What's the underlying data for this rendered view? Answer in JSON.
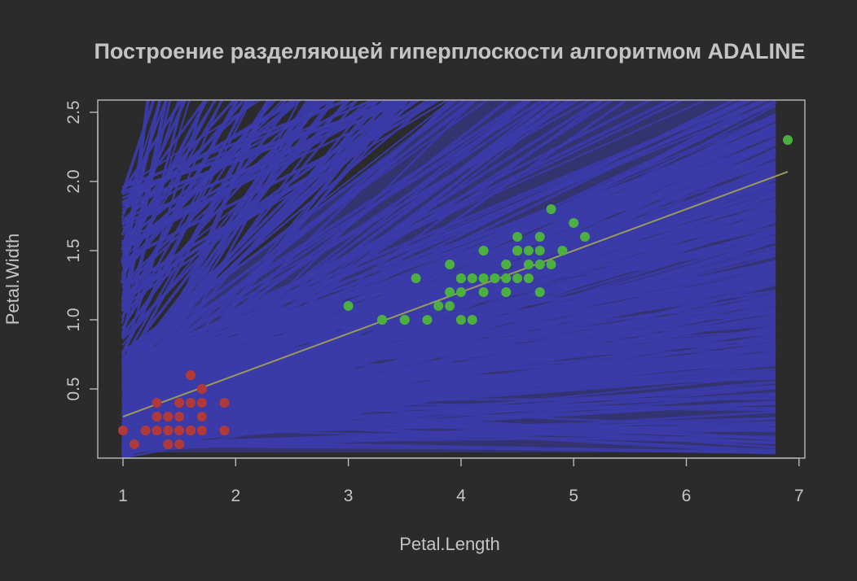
{
  "chart_data": {
    "type": "scatter",
    "title": "Построение разделяющей гиперплоскости алгоритмом ADALINE",
    "xlabel": "Petal.Length",
    "ylabel": "Petal.Width",
    "xlim": [
      1,
      6.9
    ],
    "ylim": [
      0.1,
      2.5
    ],
    "xticks": [
      "1",
      "2",
      "3",
      "4",
      "5",
      "6",
      "7"
    ],
    "yticks": [
      "0.5",
      "1.0",
      "1.5",
      "2.0",
      "2.5"
    ],
    "grid": false,
    "colors": {
      "background": "#2b2b2b",
      "foreground": "#c4c4c4",
      "hyperplane_iterations": "#3a3aa8",
      "final_hyperplane": "#9a9a5a",
      "class_1": "#b03a3a",
      "class_2": "#4cb040"
    },
    "series": [
      {
        "color": "#b03a3a",
        "points": [
          [
            1.4,
            0.2
          ],
          [
            1.4,
            0.2
          ],
          [
            1.3,
            0.2
          ],
          [
            1.5,
            0.2
          ],
          [
            1.4,
            0.2
          ],
          [
            1.7,
            0.4
          ],
          [
            1.4,
            0.3
          ],
          [
            1.5,
            0.2
          ],
          [
            1.4,
            0.2
          ],
          [
            1.5,
            0.1
          ],
          [
            1.5,
            0.2
          ],
          [
            1.6,
            0.2
          ],
          [
            1.4,
            0.1
          ],
          [
            1.1,
            0.1
          ],
          [
            1.2,
            0.2
          ],
          [
            1.5,
            0.4
          ],
          [
            1.3,
            0.4
          ],
          [
            1.4,
            0.3
          ],
          [
            1.7,
            0.3
          ],
          [
            1.5,
            0.3
          ],
          [
            1.7,
            0.2
          ],
          [
            1.5,
            0.4
          ],
          [
            1.0,
            0.2
          ],
          [
            1.7,
            0.5
          ],
          [
            1.9,
            0.2
          ],
          [
            1.6,
            0.2
          ],
          [
            1.6,
            0.4
          ],
          [
            1.5,
            0.2
          ],
          [
            1.4,
            0.2
          ],
          [
            1.6,
            0.2
          ],
          [
            1.6,
            0.2
          ],
          [
            1.5,
            0.4
          ],
          [
            1.5,
            0.1
          ],
          [
            1.4,
            0.2
          ],
          [
            1.5,
            0.2
          ],
          [
            1.2,
            0.2
          ],
          [
            1.3,
            0.2
          ],
          [
            1.4,
            0.1
          ],
          [
            1.3,
            0.2
          ],
          [
            1.5,
            0.2
          ],
          [
            1.3,
            0.3
          ],
          [
            1.3,
            0.3
          ],
          [
            1.3,
            0.2
          ],
          [
            1.6,
            0.6
          ],
          [
            1.9,
            0.4
          ],
          [
            1.4,
            0.3
          ],
          [
            1.6,
            0.2
          ],
          [
            1.4,
            0.2
          ],
          [
            1.5,
            0.2
          ],
          [
            1.4,
            0.2
          ]
        ]
      },
      {
        "color": "#4cb040",
        "points": [
          [
            4.7,
            1.4
          ],
          [
            4.5,
            1.5
          ],
          [
            4.9,
            1.5
          ],
          [
            4.0,
            1.3
          ],
          [
            4.6,
            1.5
          ],
          [
            4.5,
            1.3
          ],
          [
            4.7,
            1.6
          ],
          [
            3.3,
            1.0
          ],
          [
            4.6,
            1.3
          ],
          [
            3.9,
            1.4
          ],
          [
            3.5,
            1.0
          ],
          [
            4.2,
            1.5
          ],
          [
            4.0,
            1.0
          ],
          [
            4.7,
            1.4
          ],
          [
            3.6,
            1.3
          ],
          [
            4.4,
            1.4
          ],
          [
            4.5,
            1.5
          ],
          [
            4.1,
            1.0
          ],
          [
            4.5,
            1.5
          ],
          [
            3.9,
            1.1
          ],
          [
            4.8,
            1.8
          ],
          [
            4.0,
            1.3
          ],
          [
            4.9,
            1.5
          ],
          [
            4.7,
            1.2
          ],
          [
            4.3,
            1.3
          ],
          [
            4.4,
            1.4
          ],
          [
            4.8,
            1.4
          ],
          [
            5.0,
            1.7
          ],
          [
            4.5,
            1.5
          ],
          [
            3.5,
            1.0
          ],
          [
            3.8,
            1.1
          ],
          [
            3.7,
            1.0
          ],
          [
            3.9,
            1.2
          ],
          [
            5.1,
            1.6
          ],
          [
            4.5,
            1.5
          ],
          [
            4.5,
            1.6
          ],
          [
            4.7,
            1.5
          ],
          [
            4.4,
            1.3
          ],
          [
            4.1,
            1.3
          ],
          [
            4.0,
            1.3
          ],
          [
            4.4,
            1.2
          ],
          [
            4.6,
            1.4
          ],
          [
            4.0,
            1.2
          ],
          [
            3.3,
            1.0
          ],
          [
            4.2,
            1.3
          ],
          [
            4.2,
            1.2
          ],
          [
            4.2,
            1.3
          ],
          [
            4.3,
            1.3
          ],
          [
            3.0,
            1.1
          ],
          [
            4.1,
            1.3
          ],
          [
            6.9,
            2.3
          ]
        ]
      }
    ],
    "final_hyperplane": {
      "x": [
        1.0,
        6.9
      ],
      "y": [
        0.3,
        2.07
      ]
    }
  }
}
